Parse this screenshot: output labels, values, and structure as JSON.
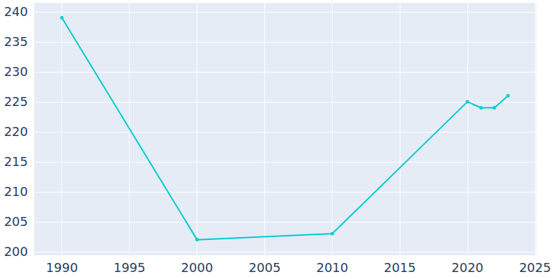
{
  "chart_data": {
    "type": "line",
    "x": [
      1990,
      2000,
      2010,
      2020,
      2021,
      2022,
      2023
    ],
    "values": [
      239,
      202,
      203,
      225,
      224,
      224,
      226
    ],
    "color": "#00cccc",
    "marker": "circle",
    "xlim": [
      1987.9,
      2025.1
    ],
    "xticks": [
      1990,
      1995,
      2000,
      2005,
      2010,
      2015,
      2020,
      2025
    ],
    "ylim": [
      199.4,
      241.5
    ],
    "yticks": [
      200,
      205,
      210,
      215,
      220,
      225,
      230,
      235,
      240
    ],
    "grid": true
  }
}
